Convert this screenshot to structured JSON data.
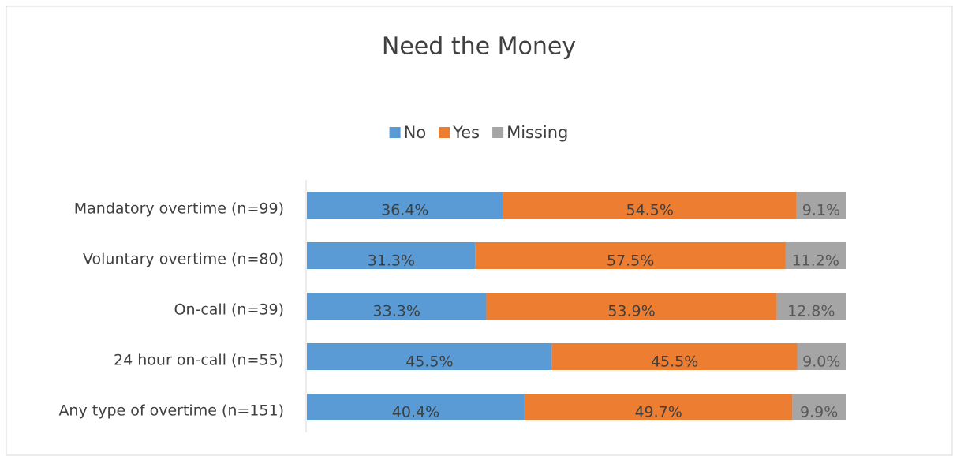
{
  "chart_data": {
    "type": "stacked-bar-horizontal",
    "title": "Need the Money",
    "categories": [
      "Mandatory overtime (n=99)",
      "Voluntary overtime (n=80)",
      "On-call (n=39)",
      "24 hour on-call (n=55)",
      "Any type of overtime (n=151)"
    ],
    "series": [
      {
        "name": "No",
        "color": "#5b9bd5",
        "values": [
          36.4,
          31.3,
          33.3,
          45.5,
          40.4
        ],
        "value_labels": [
          "36.4%",
          "31.3%",
          "33.3%",
          "45.5%",
          "40.4%"
        ]
      },
      {
        "name": "Yes",
        "color": "#ed7d31",
        "values": [
          54.5,
          57.5,
          53.9,
          45.5,
          49.7
        ],
        "value_labels": [
          "54.5%",
          "57.5%",
          "53.9%",
          "45.5%",
          "49.7%"
        ]
      },
      {
        "name": "Missing",
        "color": "#a5a5a5",
        "values": [
          9.1,
          11.2,
          12.8,
          9.0,
          9.9
        ],
        "value_labels": [
          "9.1%",
          "11.2%",
          "12.8%",
          "9.0%",
          "9.9%"
        ]
      }
    ],
    "legend": "top"
  }
}
